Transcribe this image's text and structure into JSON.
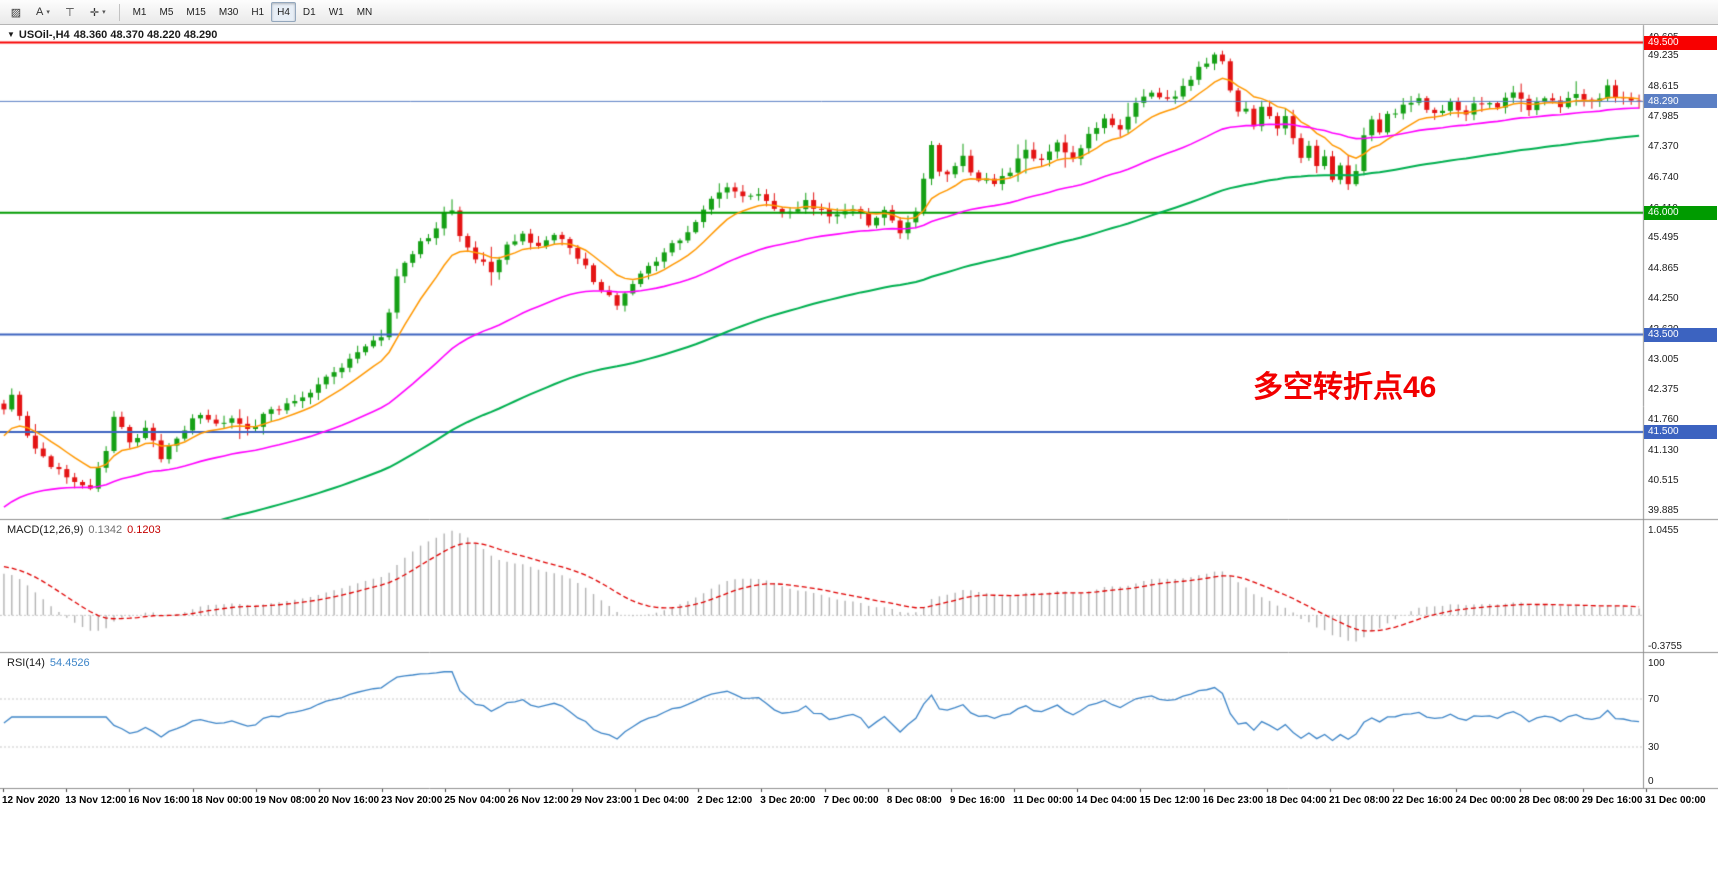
{
  "toolbar": {
    "dropdown_glyph": "▾",
    "tools": [
      {
        "name": "hatch-pattern-tool",
        "glyph": "▨",
        "dropdown": false
      },
      {
        "name": "text-tool",
        "glyph": "A",
        "dropdown": true
      },
      {
        "name": "vertical-line-tool",
        "glyph": "⊤",
        "dropdown": false
      },
      {
        "name": "crosshair-tool",
        "glyph": "✛",
        "dropdown": true
      }
    ],
    "timeframes": [
      "M1",
      "M5",
      "M15",
      "M30",
      "H1",
      "H4",
      "D1",
      "W1",
      "MN"
    ],
    "selected_timeframe": "H4"
  },
  "price_panel": {
    "collapse_arrow": "▼",
    "symbol": "USOil-,H4",
    "ohlc": "48.360 48.370 48.220 48.290",
    "annotation": {
      "text": "多空转折点46",
      "color": "#f20000"
    },
    "axis_ticks": [
      "49.605",
      "49.235",
      "48.615",
      "47.985",
      "47.370",
      "46.740",
      "46.110",
      "45.495",
      "44.865",
      "44.250",
      "43.620",
      "43.005",
      "42.375",
      "41.760",
      "41.130",
      "40.515",
      "39.885"
    ],
    "levels": [
      {
        "price": 49.5,
        "label": "49.500",
        "color": "#f80000",
        "width": 2
      },
      {
        "price": 48.29,
        "label": "48.290",
        "color": "#5b7fc4",
        "width": 1
      },
      {
        "price": 46.0,
        "label": "46.000",
        "color": "#009b00",
        "width": 2
      },
      {
        "price": 43.5,
        "label": "43.500",
        "color": "#3c63c0",
        "width": 2
      },
      {
        "price": 41.5,
        "label": "41.500",
        "color": "#3c63c0",
        "width": 2
      }
    ]
  },
  "macd_panel": {
    "name": "MACD(12,26,9)",
    "value_main": "0.1342",
    "value_signal": "0.1203",
    "axis_ticks": [
      {
        "label": "1.0455",
        "value": 1.0455
      },
      {
        "label": "-0.3755",
        "value": -0.3755
      }
    ]
  },
  "rsi_panel": {
    "name": "RSI(14)",
    "value": "54.4526",
    "axis_ticks": [
      {
        "label": "100",
        "value": 100
      },
      {
        "label": "70",
        "value": 70
      },
      {
        "label": "30",
        "value": 30
      },
      {
        "label": "0",
        "value": 0
      }
    ]
  },
  "time_axis": {
    "labels": [
      "12 Nov 2020",
      "13 Nov 12:00",
      "16 Nov 16:00",
      "18 Nov 00:00",
      "19 Nov 08:00",
      "20 Nov 16:00",
      "23 Nov 20:00",
      "25 Nov 04:00",
      "26 Nov 12:00",
      "29 Nov 23:00",
      "1 Dec 04:00",
      "2 Dec 12:00",
      "3 Dec 20:00",
      "7 Dec 00:00",
      "8 Dec 08:00",
      "9 Dec 16:00",
      "11 Dec 00:00",
      "14 Dec 04:00",
      "15 Dec 12:00",
      "16 Dec 23:00",
      "18 Dec 04:00",
      "21 Dec 08:00",
      "22 Dec 16:00",
      "24 Dec 00:00",
      "28 Dec 08:00",
      "29 Dec 16:00",
      "31 Dec 00:00"
    ]
  },
  "colors": {
    "bull": "#15a015",
    "bear": "#e41414",
    "ma_fast": "#ff9800",
    "ma_mid": "#ff00ff",
    "ma_slow": "#00b050",
    "macd_hist": "#b4b4b4",
    "macd_signal": "#e00000",
    "rsi_line": "#3d85c8",
    "panel_border": "#8f8f8f",
    "guide_dotted": "#c8c8c8"
  },
  "chart_data": [
    {
      "type": "candlestick",
      "title": "USOil-,H4",
      "bars": 209,
      "ylim": [
        39.885,
        49.605
      ],
      "last_close": 48.29,
      "h_levels": [
        49.5,
        48.29,
        46.0,
        43.5,
        41.5
      ],
      "moving_averages": [
        {
          "name": "ma-fast",
          "color": "#ff9800"
        },
        {
          "name": "ma-mid",
          "color": "#ff00ff"
        },
        {
          "name": "ma-slow",
          "color": "#00b050"
        }
      ],
      "close_path": [
        [
          0,
          41.95
        ],
        [
          1,
          42.3
        ],
        [
          3,
          41.4
        ],
        [
          5,
          41.0
        ],
        [
          7,
          40.7
        ],
        [
          9,
          40.45
        ],
        [
          11,
          40.35
        ],
        [
          13,
          41.1
        ],
        [
          14,
          41.85
        ],
        [
          16,
          41.25
        ],
        [
          18,
          41.55
        ],
        [
          20,
          41.0
        ],
        [
          23,
          41.6
        ],
        [
          25,
          41.9
        ],
        [
          27,
          41.65
        ],
        [
          29,
          41.85
        ],
        [
          31,
          41.55
        ],
        [
          33,
          41.8
        ],
        [
          35,
          42.0
        ],
        [
          37,
          42.15
        ],
        [
          39,
          42.3
        ],
        [
          41,
          42.6
        ],
        [
          43,
          42.85
        ],
        [
          45,
          43.15
        ],
        [
          47,
          43.45
        ],
        [
          48,
          43.4
        ],
        [
          49,
          44.0
        ],
        [
          50,
          44.75
        ],
        [
          52,
          45.15
        ],
        [
          54,
          45.55
        ],
        [
          56,
          45.95
        ],
        [
          57,
          46.05
        ],
        [
          58,
          45.55
        ],
        [
          60,
          45.05
        ],
        [
          62,
          44.85
        ],
        [
          64,
          45.3
        ],
        [
          66,
          45.5
        ],
        [
          68,
          45.25
        ],
        [
          70,
          45.5
        ],
        [
          72,
          45.35
        ],
        [
          74,
          44.85
        ],
        [
          76,
          44.35
        ],
        [
          78,
          44.15
        ],
        [
          80,
          44.55
        ],
        [
          82,
          44.9
        ],
        [
          84,
          45.2
        ],
        [
          86,
          45.5
        ],
        [
          88,
          45.85
        ],
        [
          90,
          46.3
        ],
        [
          92,
          46.55
        ],
        [
          94,
          46.3
        ],
        [
          96,
          46.45
        ],
        [
          98,
          46.1
        ],
        [
          100,
          46.0
        ],
        [
          102,
          46.2
        ],
        [
          104,
          46.05
        ],
        [
          106,
          45.9
        ],
        [
          108,
          46.1
        ],
        [
          110,
          45.75
        ],
        [
          112,
          46.0
        ],
        [
          114,
          45.65
        ],
        [
          116,
          46.1
        ],
        [
          117,
          46.7
        ],
        [
          118,
          47.45
        ],
        [
          119,
          46.9
        ],
        [
          120,
          46.75
        ],
        [
          122,
          47.1
        ],
        [
          124,
          46.7
        ],
        [
          126,
          46.6
        ],
        [
          128,
          46.9
        ],
        [
          130,
          47.3
        ],
        [
          132,
          47.05
        ],
        [
          134,
          47.4
        ],
        [
          136,
          47.15
        ],
        [
          138,
          47.6
        ],
        [
          140,
          47.9
        ],
        [
          142,
          47.75
        ],
        [
          144,
          48.2
        ],
        [
          146,
          48.45
        ],
        [
          148,
          48.3
        ],
        [
          150,
          48.6
        ],
        [
          152,
          48.95
        ],
        [
          154,
          49.2
        ],
        [
          155,
          49.15
        ],
        [
          156,
          48.5
        ],
        [
          157,
          48.05
        ],
        [
          158,
          48.2
        ],
        [
          159,
          47.85
        ],
        [
          160,
          48.25
        ],
        [
          161,
          47.95
        ],
        [
          162,
          47.7
        ],
        [
          163,
          48.05
        ],
        [
          164,
          47.5
        ],
        [
          165,
          47.15
        ],
        [
          166,
          47.45
        ],
        [
          167,
          46.95
        ],
        [
          168,
          47.2
        ],
        [
          169,
          46.7
        ],
        [
          170,
          46.9
        ],
        [
          171,
          46.55
        ],
        [
          172,
          46.8
        ],
        [
          173,
          47.55
        ],
        [
          174,
          47.85
        ],
        [
          175,
          47.7
        ],
        [
          176,
          48.0
        ],
        [
          178,
          48.15
        ],
        [
          180,
          48.35
        ],
        [
          182,
          48.0
        ],
        [
          184,
          48.25
        ],
        [
          186,
          48.05
        ],
        [
          188,
          48.3
        ],
        [
          190,
          48.2
        ],
        [
          192,
          48.45
        ],
        [
          194,
          48.1
        ],
        [
          196,
          48.35
        ],
        [
          198,
          48.2
        ],
        [
          200,
          48.5
        ],
        [
          202,
          48.3
        ],
        [
          204,
          48.55
        ],
        [
          206,
          48.35
        ],
        [
          208,
          48.29
        ]
      ]
    },
    {
      "type": "macd",
      "fast": 12,
      "slow": 26,
      "signal": 9,
      "current_main": 0.1342,
      "current_signal": 0.1203,
      "ylim": [
        -0.3755,
        1.0455
      ]
    },
    {
      "type": "rsi",
      "period": 14,
      "current": 54.4526,
      "ylim": [
        0,
        100
      ],
      "guide_levels": [
        70,
        30
      ]
    }
  ]
}
